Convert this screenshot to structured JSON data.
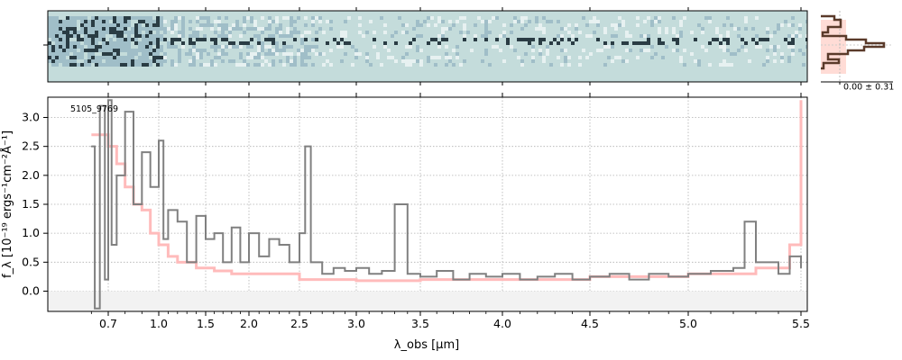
{
  "figure": {
    "object_label": "5105_9769",
    "profile_label": "0.00 ± 0.31",
    "xlabel": "λ_obs [μm]",
    "ylabel": "f_λ [10⁻¹⁹ ergs⁻¹cm⁻²Å⁻¹]",
    "colors": {
      "spectrum": "#808080",
      "error": "#ffbbbb",
      "model": "#f08080",
      "profile": "#5a3a2a",
      "image_bg": "#c4dcdb",
      "grid": "#b0b0b0"
    }
  },
  "chart_data": {
    "type": "line",
    "title": "",
    "xlabel": "λ_obs [μm]",
    "ylabel": "f_λ [10⁻¹⁹ ergs⁻¹cm⁻²Å⁻¹]",
    "x_scale": "nonlinear (dispersion)",
    "x_ticks": [
      "0.7",
      "1.0",
      "1.5",
      "2.0",
      "2.5",
      "3.0",
      "3.5",
      "4.0",
      "4.5",
      "5.0",
      "5.5"
    ],
    "x_tick_values": [
      0.7,
      1.0,
      1.5,
      2.0,
      2.5,
      3.0,
      3.5,
      4.0,
      4.5,
      5.0,
      5.5
    ],
    "y_ticks": [
      "0.0",
      "0.5",
      "1.0",
      "1.5",
      "2.0",
      "2.5",
      "3.0"
    ],
    "ylim": [
      -0.35,
      3.35
    ],
    "grid": true,
    "series": [
      {
        "role": "flux",
        "x": [
          0.6,
          0.62,
          0.65,
          0.68,
          0.7,
          0.72,
          0.75,
          0.8,
          0.85,
          0.9,
          0.95,
          1.0,
          1.05,
          1.1,
          1.2,
          1.3,
          1.4,
          1.5,
          1.6,
          1.7,
          1.8,
          1.9,
          2.0,
          2.1,
          2.2,
          2.3,
          2.4,
          2.5,
          2.55,
          2.6,
          2.7,
          2.8,
          2.9,
          3.0,
          3.1,
          3.2,
          3.3,
          3.4,
          3.5,
          3.6,
          3.7,
          3.8,
          3.9,
          4.0,
          4.1,
          4.2,
          4.3,
          4.4,
          4.5,
          4.6,
          4.7,
          4.8,
          4.9,
          5.0,
          5.1,
          5.2,
          5.25,
          5.3,
          5.4,
          5.45,
          5.5
        ],
        "y": [
          2.5,
          -0.3,
          3.2,
          0.2,
          3.3,
          0.8,
          2.0,
          3.1,
          1.5,
          2.4,
          1.8,
          2.6,
          0.9,
          1.4,
          1.2,
          0.5,
          1.3,
          0.9,
          1.0,
          0.5,
          1.1,
          0.5,
          1.0,
          0.6,
          0.9,
          0.8,
          0.5,
          1.0,
          2.5,
          0.5,
          0.3,
          0.4,
          0.35,
          0.4,
          0.3,
          0.35,
          1.5,
          0.3,
          0.25,
          0.35,
          0.2,
          0.3,
          0.25,
          0.3,
          0.2,
          0.25,
          0.3,
          0.2,
          0.25,
          0.3,
          0.2,
          0.3,
          0.25,
          0.3,
          0.35,
          0.4,
          1.2,
          0.5,
          0.3,
          0.6,
          0.4
        ]
      },
      {
        "role": "uncertainty",
        "x": [
          0.6,
          0.7,
          0.75,
          0.8,
          0.85,
          0.9,
          0.95,
          1.0,
          1.1,
          1.2,
          1.4,
          1.6,
          1.8,
          2.0,
          2.5,
          3.0,
          3.5,
          4.0,
          4.5,
          5.0,
          5.3,
          5.45,
          5.5
        ],
        "y": [
          2.7,
          2.5,
          2.2,
          1.8,
          1.5,
          1.4,
          1.0,
          0.8,
          0.6,
          0.5,
          0.4,
          0.35,
          0.3,
          0.3,
          0.2,
          0.18,
          0.2,
          0.2,
          0.25,
          0.3,
          0.4,
          0.8,
          3.3
        ]
      }
    ]
  }
}
